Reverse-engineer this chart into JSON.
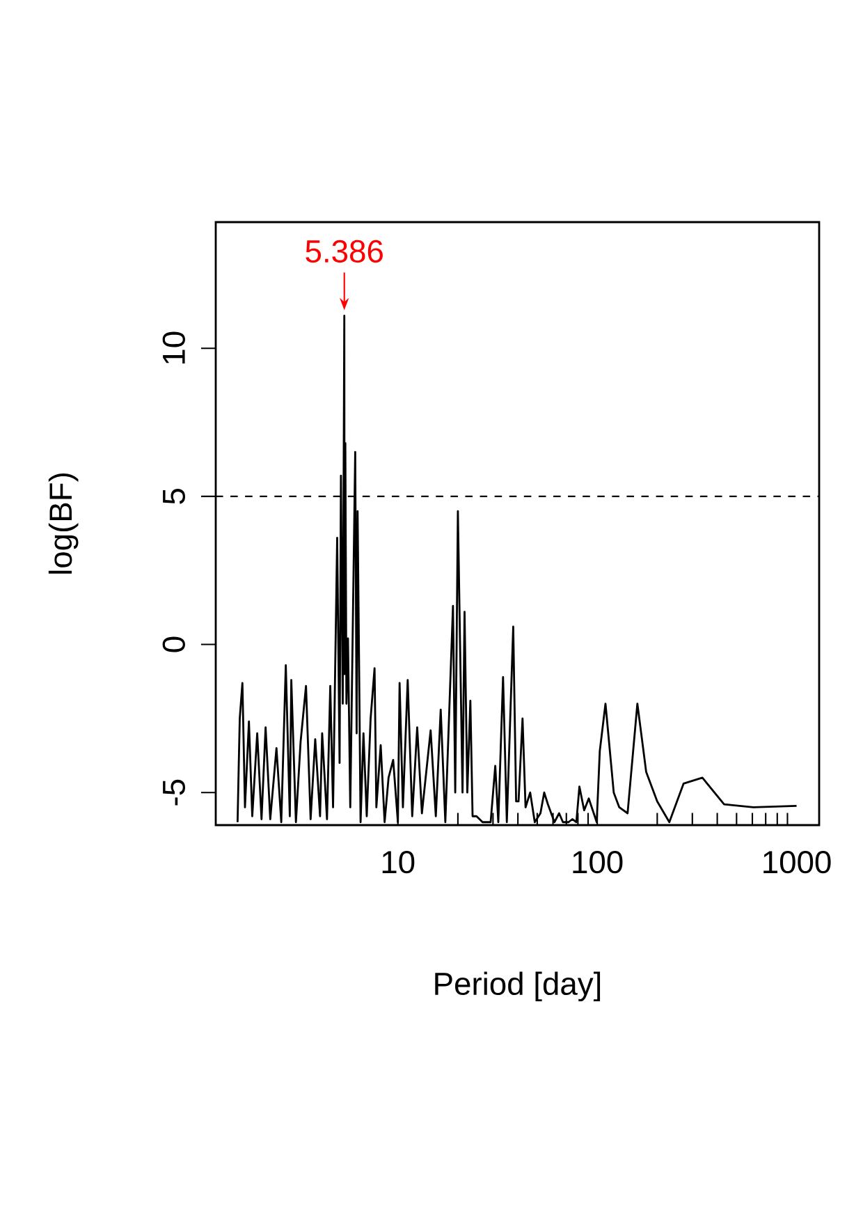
{
  "chart_data": {
    "type": "line",
    "xlabel": "Period [day]",
    "ylabel": "log(BF)",
    "x": [
      1.57,
      1.59,
      1.61,
      1.66,
      1.71,
      1.79,
      1.86,
      1.97,
      2.07,
      2.17,
      2.29,
      2.46,
      2.6,
      2.74,
      2.87,
      2.92,
      3.08,
      3.25,
      3.46,
      3.65,
      3.85,
      4.07,
      4.17,
      4.41,
      4.58,
      4.73,
      4.96,
      5.1,
      5.18,
      5.29,
      5.386,
      5.4,
      5.45,
      5.52,
      5.62,
      5.77,
      6.11,
      6.21,
      6.28,
      6.33,
      6.5,
      6.72,
      6.98,
      7.3,
      7.64,
      7.8,
      8.2,
      8.58,
      8.98,
      9.47,
      10.0,
      10.2,
      10.6,
      11.2,
      11.8,
      12.5,
      13.2,
      14.6,
      15.5,
      16.4,
      17.3,
      18.9,
      19.4,
      20.0,
      20.5,
      21.1,
      21.6,
      22.3,
      23.1,
      23.7,
      24.8,
      26.6,
      29.2,
      30.8,
      31.9,
      33.7,
      35.2,
      37.9,
      39.2,
      40.3,
      42.2,
      43.7,
      46.1,
      48.6,
      51.9,
      54.2,
      56.6,
      61.0,
      64.4,
      67.3,
      71.8,
      75.0,
      78.6,
      81.4,
      86.0,
      90.7,
      99.4,
      103,
      110,
      121,
      129,
      142,
      159,
      176,
      200,
      230,
      271,
      337,
      433,
      607,
      1000
    ],
    "series": [
      {
        "color": "#000000",
        "values": [
          -6.0,
          -4.2,
          -2.5,
          -1.3,
          -5.5,
          -2.6,
          -5.8,
          -3.0,
          -5.9,
          -2.8,
          -5.9,
          -3.5,
          -6.0,
          -0.7,
          -5.8,
          -1.2,
          -6.0,
          -3.3,
          -1.4,
          -5.9,
          -3.2,
          -5.8,
          -3.0,
          -5.9,
          -1.4,
          -5.5,
          3.6,
          -4.0,
          5.7,
          -2.0,
          11.1,
          -1.0,
          6.8,
          -2.0,
          0.2,
          -5.5,
          6.5,
          -3.0,
          4.5,
          2.1,
          -6.0,
          -3.0,
          -5.8,
          -2.5,
          -0.8,
          -5.5,
          -3.4,
          -6.0,
          -4.5,
          -3.9,
          -6.0,
          -1.3,
          -5.5,
          -1.2,
          -5.8,
          -2.8,
          -5.7,
          -2.9,
          -5.8,
          -2.2,
          -6.0,
          1.3,
          -5.0,
          4.5,
          0.1,
          -5.0,
          1.1,
          -5.0,
          -1.9,
          -5.8,
          -5.8,
          -6.0,
          -6.0,
          -4.1,
          -6.0,
          -1.1,
          -6.0,
          0.6,
          -5.3,
          -5.3,
          -2.5,
          -5.5,
          -5.0,
          -6.0,
          -5.7,
          -5.0,
          -5.4,
          -6.0,
          -5.7,
          -6.0,
          -6.0,
          -5.9,
          -6.0,
          -4.8,
          -5.6,
          -5.2,
          -6.0,
          -3.6,
          -2.0,
          -5.0,
          -5.5,
          -5.7,
          -2.0,
          -4.3,
          -5.3,
          -6.0,
          -4.7,
          -4.5,
          -5.4,
          -5.5,
          -5.45
        ]
      }
    ],
    "log": "x",
    "xlim": [
      1.22,
      1298
    ],
    "ylim": [
      -6.1,
      14.26
    ],
    "xticks": [
      10,
      100,
      1000
    ],
    "yticks": [
      -5,
      0,
      5,
      10
    ],
    "ref_lines": [
      {
        "axis": "y",
        "value": 5,
        "line_style": "dashed"
      }
    ],
    "annotations": [
      {
        "text": "5.386",
        "x": 5.386,
        "y": 11.1
      }
    ]
  }
}
